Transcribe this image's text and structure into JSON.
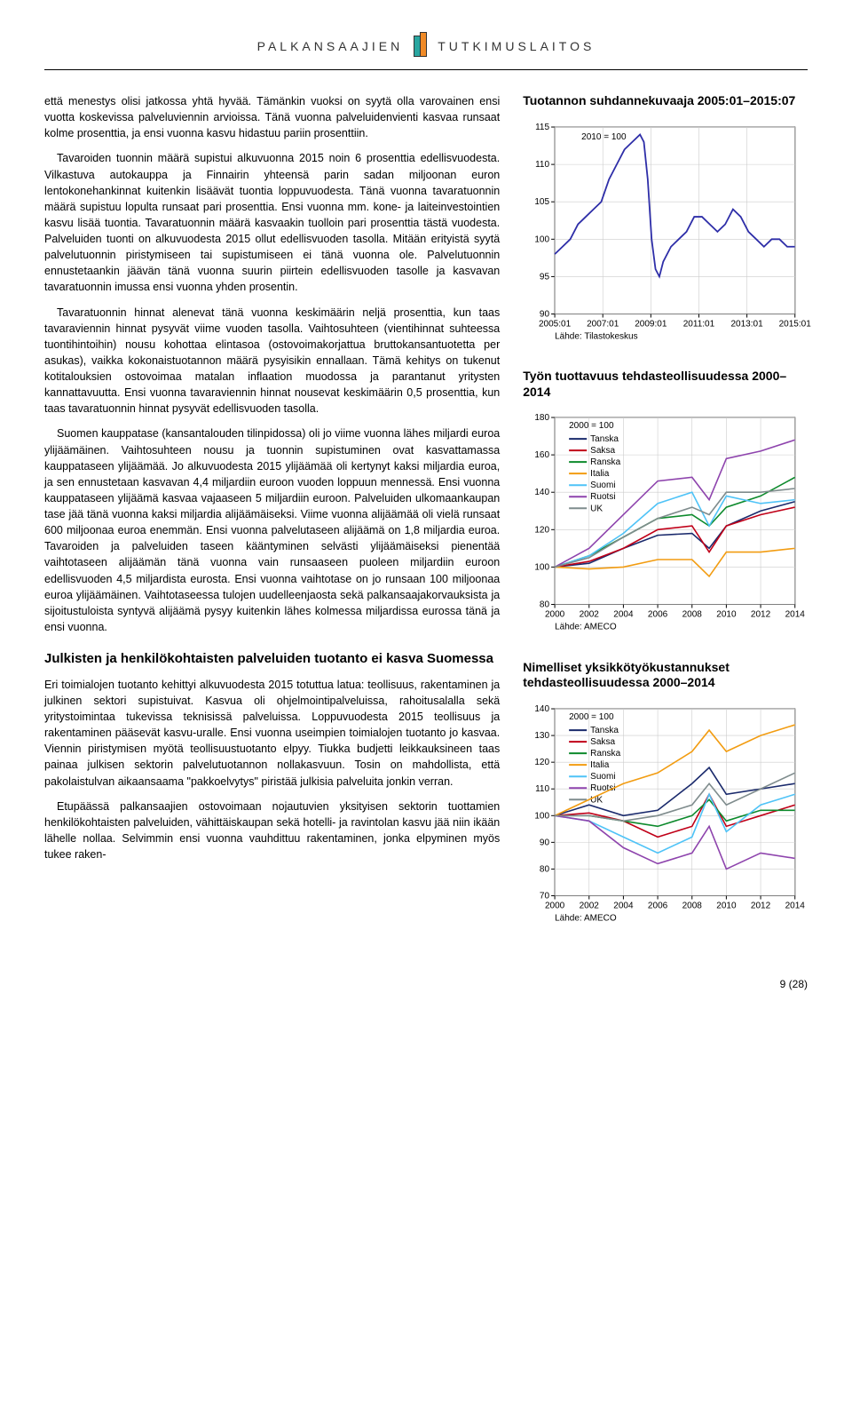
{
  "header": {
    "left": "PALKANSAAJIEN",
    "right": "TUTKIMUSLAITOS"
  },
  "left_column": {
    "para1": "että menestys olisi jatkossa yhtä hyvää. Tämänkin vuoksi on syytä olla varovainen ensi vuotta koskevissa palveluviennin arvioissa. Tänä vuonna palveluidenvienti kasvaa runsaat kolme prosenttia, ja ensi vuonna kasvu hidastuu pariin prosenttiin.",
    "para2": "Tavaroiden tuonnin määrä supistui alkuvuonna 2015 noin 6 prosenttia edellisvuodesta. Vilkastuva autokauppa ja Finnairin yhteensä parin sadan miljoonan euron lentokonehankinnat kuitenkin lisäävät tuontia loppuvuodesta. Tänä vuonna tavaratuonnin määrä supistuu lopulta runsaat pari prosenttia. Ensi vuonna mm. kone- ja laiteinvestointien kasvu lisää tuontia. Tavaratuonnin määrä kasvaakin tuolloin pari prosenttia tästä vuodesta. Palveluiden tuonti on alkuvuodesta 2015 ollut edellisvuoden tasolla. Mitään erityistä syytä palvelutuonnin piristymiseen tai supistumiseen ei tänä vuonna ole. Palvelutuonnin ennustetaankin jäävän tänä vuonna suurin piirtein edellisvuoden tasolle ja kasvavan tavaratuonnin imussa ensi vuonna yhden prosentin.",
    "para3": "Tavaratuonnin hinnat alenevat tänä vuonna keskimäärin neljä prosenttia, kun taas tavaraviennin hinnat pysyvät viime vuoden tasolla. Vaihtosuhteen (vientihinnat suhteessa tuontihintoihin) nousu kohottaa elintasoa (ostovoimakorjattua bruttokansantuotetta per asukas), vaikka kokonaistuotannon määrä pysyisikin ennallaan. Tämä kehitys on tukenut kotitalouksien ostovoimaa matalan inflaation muodossa ja parantanut yritysten kannattavuutta. Ensi vuonna tavaraviennin hinnat nousevat keskimäärin 0,5 prosenttia, kun taas tavaratuonnin hinnat pysyvät edellisvuoden tasolla.",
    "para4": "Suomen kauppatase (kansantalouden tilinpidossa) oli jo viime vuonna lähes miljardi euroa ylijäämäinen. Vaihtosuhteen nousu ja tuonnin supistuminen ovat kasvattamassa kauppataseen ylijäämää. Jo alkuvuodesta 2015 ylijäämää oli kertynyt kaksi miljardia euroa, ja sen ennustetaan kasvavan 4,4 miljardiin euroon vuoden loppuun mennessä. Ensi vuonna kauppataseen ylijäämä kasvaa vajaaseen 5 miljardiin euroon. Palveluiden ulkomaankaupan tase jää tänä vuonna kaksi miljardia alijäämäiseksi. Viime vuonna alijäämää oli vielä runsaat 600 miljoonaa euroa enemmän. Ensi vuonna palvelutaseen alijäämä on 1,8 miljardia euroa. Tavaroiden ja palveluiden taseen kääntyminen selvästi ylijäämäiseksi pienentää vaihtotaseen alijäämän tänä vuonna vain runsaaseen puoleen miljardiin euroon edellisvuoden 4,5 miljardista eurosta. Ensi vuonna vaihtotase on jo runsaan 100 miljoonaa euroa ylijäämäinen. Vaihtotaseessa tulojen uudelleenjaosta sekä palkansaajakorvauksista ja sijoitustuloista syntyvä alijäämä pysyy kuitenkin lähes kolmessa miljardissa eurossa tänä ja ensi vuonna.",
    "heading2": "Julkisten ja henkilökohtaisten palveluiden tuotanto ei kasva Suomessa",
    "para5": "Eri toimialojen tuotanto kehittyi alkuvuodesta 2015 totuttua latua: teollisuus, rakentaminen ja julkinen sektori supistuivat. Kasvua oli ohjelmointipalveluissa, rahoitusalalla sekä yritystoimintaa tukevissa teknisissä palveluissa. Loppuvuodesta 2015 teollisuus ja rakentaminen pääsevät kasvu-uralle. Ensi vuonna useimpien toimialojen tuotanto jo kasvaa. Viennin piristymisen myötä teollisuustuotanto elpyy. Tiukka budjetti leikkauksineen taas painaa julkisen sektorin palvelutuotannon nollakasvuun. Tosin on mahdollista, että pakolaistulvan aikaansaama \"pakkoelvytys\" piristää julkisia palveluita jonkin verran.",
    "para6": "Etupäässä palkansaajien ostovoimaan nojautuvien yksityisen sektorin tuottamien henkilökohtaisten palveluiden, vähittäiskaupan sekä hotelli- ja ravintolan kasvu jää niin ikään lähelle nollaa. Selvimmin ensi vuonna vauhdittuu rakentaminen, jonka elpyminen myös tukee raken-"
  },
  "chart1": {
    "title": "Tuotannon suhdannekuvaaja 2005:01–2015:07",
    "type": "line",
    "index_label": "2010 = 100",
    "ylim": [
      90,
      115
    ],
    "ytick_step": 5,
    "xticks": [
      "2005:01",
      "2007:01",
      "2009:01",
      "2011:01",
      "2013:01",
      "2015:01"
    ],
    "line_color": "#2e2ea8",
    "grid_color": "#cccccc",
    "background_color": "#ffffff",
    "source": "Lähde: Tilastokeskus",
    "data": [
      [
        0,
        98
      ],
      [
        4,
        99
      ],
      [
        8,
        100
      ],
      [
        12,
        102
      ],
      [
        16,
        103
      ],
      [
        20,
        104
      ],
      [
        24,
        105
      ],
      [
        28,
        108
      ],
      [
        32,
        110
      ],
      [
        36,
        112
      ],
      [
        40,
        113
      ],
      [
        44,
        114
      ],
      [
        46,
        113
      ],
      [
        48,
        108
      ],
      [
        50,
        100
      ],
      [
        52,
        96
      ],
      [
        54,
        95
      ],
      [
        56,
        97
      ],
      [
        60,
        99
      ],
      [
        64,
        100
      ],
      [
        68,
        101
      ],
      [
        72,
        103
      ],
      [
        76,
        103
      ],
      [
        80,
        102
      ],
      [
        84,
        101
      ],
      [
        88,
        102
      ],
      [
        92,
        104
      ],
      [
        96,
        103
      ],
      [
        100,
        101
      ],
      [
        104,
        100
      ],
      [
        108,
        99
      ],
      [
        112,
        100
      ],
      [
        116,
        100
      ],
      [
        120,
        99
      ],
      [
        124,
        99
      ]
    ]
  },
  "chart2": {
    "title": "Työn tuottavuus tehdasteollisuudessa 2000–2014",
    "type": "line",
    "index_label": "2000 = 100",
    "ylim": [
      80,
      180
    ],
    "ytick_step": 20,
    "xlim": [
      2000,
      2014
    ],
    "xtick_step": 2,
    "grid_color": "#cccccc",
    "background_color": "#ffffff",
    "source": "Lähde: AMECO",
    "legend": [
      {
        "name": "Tanska",
        "color": "#1a2a6c"
      },
      {
        "name": "Saksa",
        "color": "#c00018"
      },
      {
        "name": "Ranska",
        "color": "#0d8a2c"
      },
      {
        "name": "Italia",
        "color": "#f29c11"
      },
      {
        "name": "Suomi",
        "color": "#4fc3f7"
      },
      {
        "name": "Ruotsi",
        "color": "#8e44ad"
      },
      {
        "name": "UK",
        "color": "#7f8c8d"
      }
    ],
    "series": {
      "Tanska": [
        [
          2000,
          100
        ],
        [
          2002,
          102
        ],
        [
          2004,
          110
        ],
        [
          2006,
          117
        ],
        [
          2008,
          118
        ],
        [
          2009,
          110
        ],
        [
          2010,
          122
        ],
        [
          2012,
          130
        ],
        [
          2014,
          135
        ]
      ],
      "Saksa": [
        [
          2000,
          100
        ],
        [
          2002,
          103
        ],
        [
          2004,
          110
        ],
        [
          2006,
          120
        ],
        [
          2008,
          122
        ],
        [
          2009,
          108
        ],
        [
          2010,
          122
        ],
        [
          2012,
          128
        ],
        [
          2014,
          132
        ]
      ],
      "Ranska": [
        [
          2000,
          100
        ],
        [
          2002,
          106
        ],
        [
          2004,
          116
        ],
        [
          2006,
          126
        ],
        [
          2008,
          128
        ],
        [
          2009,
          122
        ],
        [
          2010,
          132
        ],
        [
          2012,
          138
        ],
        [
          2014,
          148
        ]
      ],
      "Italia": [
        [
          2000,
          100
        ],
        [
          2002,
          99
        ],
        [
          2004,
          100
        ],
        [
          2006,
          104
        ],
        [
          2008,
          104
        ],
        [
          2009,
          95
        ],
        [
          2010,
          108
        ],
        [
          2012,
          108
        ],
        [
          2014,
          110
        ]
      ],
      "Suomi": [
        [
          2000,
          100
        ],
        [
          2002,
          106
        ],
        [
          2004,
          118
        ],
        [
          2006,
          134
        ],
        [
          2008,
          140
        ],
        [
          2009,
          122
        ],
        [
          2010,
          138
        ],
        [
          2012,
          134
        ],
        [
          2014,
          136
        ]
      ],
      "Ruotsi": [
        [
          2000,
          100
        ],
        [
          2002,
          110
        ],
        [
          2004,
          128
        ],
        [
          2006,
          146
        ],
        [
          2008,
          148
        ],
        [
          2009,
          136
        ],
        [
          2010,
          158
        ],
        [
          2012,
          162
        ],
        [
          2014,
          168
        ]
      ],
      "UK": [
        [
          2000,
          100
        ],
        [
          2002,
          105
        ],
        [
          2004,
          116
        ],
        [
          2006,
          126
        ],
        [
          2008,
          132
        ],
        [
          2009,
          128
        ],
        [
          2010,
          140
        ],
        [
          2012,
          140
        ],
        [
          2014,
          142
        ]
      ]
    }
  },
  "chart3": {
    "title": "Nimelliset yksikkötyökustannukset tehdasteollisuudessa 2000–2014",
    "type": "line",
    "index_label": "2000 = 100",
    "ylim": [
      70,
      140
    ],
    "ytick_step": 10,
    "xlim": [
      2000,
      2014
    ],
    "xtick_step": 2,
    "grid_color": "#cccccc",
    "background_color": "#ffffff",
    "source": "Lähde: AMECO",
    "legend": [
      {
        "name": "Tanska",
        "color": "#1a2a6c"
      },
      {
        "name": "Saksa",
        "color": "#c00018"
      },
      {
        "name": "Ranska",
        "color": "#0d8a2c"
      },
      {
        "name": "Italia",
        "color": "#f29c11"
      },
      {
        "name": "Suomi",
        "color": "#4fc3f7"
      },
      {
        "name": "Ruotsi",
        "color": "#8e44ad"
      },
      {
        "name": "UK",
        "color": "#7f8c8d"
      }
    ],
    "series": {
      "Tanska": [
        [
          2000,
          100
        ],
        [
          2002,
          104
        ],
        [
          2004,
          100
        ],
        [
          2006,
          102
        ],
        [
          2008,
          112
        ],
        [
          2009,
          118
        ],
        [
          2010,
          108
        ],
        [
          2012,
          110
        ],
        [
          2014,
          112
        ]
      ],
      "Saksa": [
        [
          2000,
          100
        ],
        [
          2002,
          101
        ],
        [
          2004,
          98
        ],
        [
          2006,
          92
        ],
        [
          2008,
          96
        ],
        [
          2009,
          108
        ],
        [
          2010,
          96
        ],
        [
          2012,
          100
        ],
        [
          2014,
          104
        ]
      ],
      "Ranska": [
        [
          2000,
          100
        ],
        [
          2002,
          100
        ],
        [
          2004,
          98
        ],
        [
          2006,
          96
        ],
        [
          2008,
          100
        ],
        [
          2009,
          106
        ],
        [
          2010,
          98
        ],
        [
          2012,
          102
        ],
        [
          2014,
          102
        ]
      ],
      "Italia": [
        [
          2000,
          100
        ],
        [
          2002,
          106
        ],
        [
          2004,
          112
        ],
        [
          2006,
          116
        ],
        [
          2008,
          124
        ],
        [
          2009,
          132
        ],
        [
          2010,
          124
        ],
        [
          2012,
          130
        ],
        [
          2014,
          134
        ]
      ],
      "Suomi": [
        [
          2000,
          100
        ],
        [
          2002,
          98
        ],
        [
          2004,
          92
        ],
        [
          2006,
          86
        ],
        [
          2008,
          92
        ],
        [
          2009,
          108
        ],
        [
          2010,
          94
        ],
        [
          2012,
          104
        ],
        [
          2014,
          108
        ]
      ],
      "Ruotsi": [
        [
          2000,
          100
        ],
        [
          2002,
          98
        ],
        [
          2004,
          88
        ],
        [
          2006,
          82
        ],
        [
          2008,
          86
        ],
        [
          2009,
          96
        ],
        [
          2010,
          80
        ],
        [
          2012,
          86
        ],
        [
          2014,
          84
        ]
      ],
      "UK": [
        [
          2000,
          100
        ],
        [
          2002,
          100
        ],
        [
          2004,
          98
        ],
        [
          2006,
          100
        ],
        [
          2008,
          104
        ],
        [
          2009,
          112
        ],
        [
          2010,
          104
        ],
        [
          2012,
          110
        ],
        [
          2014,
          116
        ]
      ]
    }
  },
  "pagenum": "9 (28)"
}
